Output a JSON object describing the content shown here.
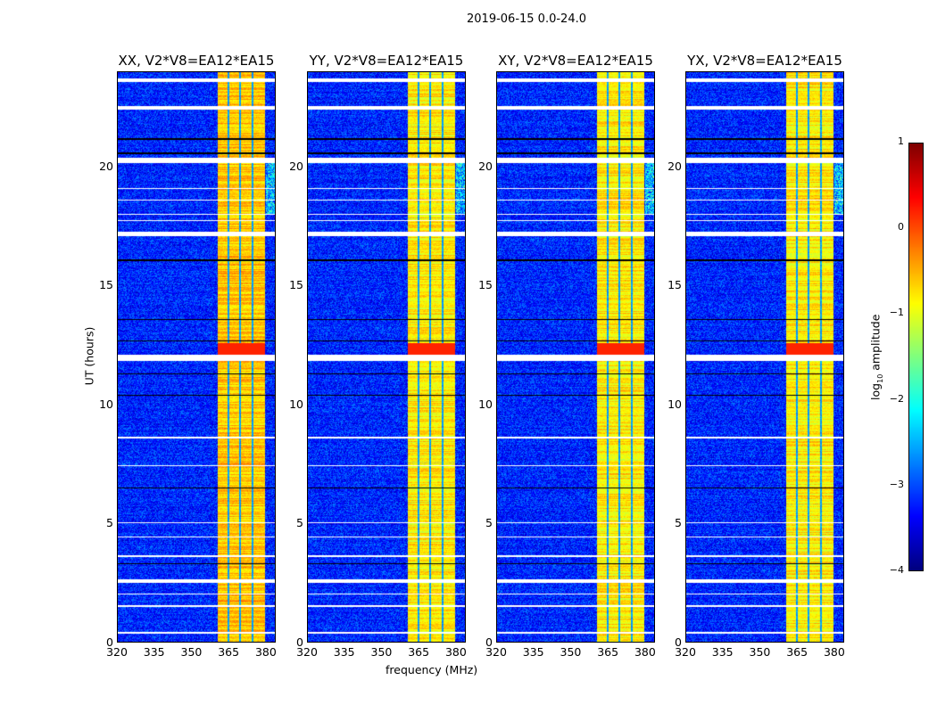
{
  "title": "2019-06-15 0.0-24.0",
  "chart_data": {
    "type": "heatmap",
    "panels": [
      {
        "title": "XX, V2*V8=EA12*EA15",
        "pol": "XX",
        "band_level": -0.6
      },
      {
        "title": "YY, V2*V8=EA12*EA15",
        "pol": "YY",
        "band_level": -0.8
      },
      {
        "title": "XY, V2*V8=EA12*EA15",
        "pol": "XY",
        "band_level": -0.8
      },
      {
        "title": "YX, V2*V8=EA12*EA15",
        "pol": "YX",
        "band_level": -0.8
      }
    ],
    "xlabel": "frequency (MHz)",
    "ylabel": "UT (hours)",
    "xlim": [
      320,
      384
    ],
    "ylim": [
      0,
      24
    ],
    "xticks": [
      "320",
      "335",
      "350",
      "365",
      "380"
    ],
    "xtick_values": [
      320,
      335,
      350,
      365,
      380
    ],
    "yticks": [
      "0",
      "5",
      "10",
      "15",
      "20"
    ],
    "ytick_values": [
      0,
      5,
      10,
      15,
      20
    ],
    "background_level": -3.2,
    "band_mhz": [
      360.5,
      379.8
    ],
    "band_gaps_mhz": [
      364.8,
      369.8,
      374.8
    ],
    "flagged_hours": [
      [
        23.6,
        23.75
      ],
      [
        22.45,
        22.6
      ],
      [
        20.2,
        20.4
      ],
      [
        19.1,
        19.15
      ],
      [
        18.6,
        18.65
      ],
      [
        18.0,
        18.05
      ],
      [
        17.75,
        17.8
      ],
      [
        17.1,
        17.3
      ],
      [
        11.85,
        12.1
      ],
      [
        8.6,
        8.65
      ],
      [
        7.4,
        7.45
      ],
      [
        5.0,
        5.05
      ],
      [
        4.4,
        4.45
      ],
      [
        3.6,
        3.65
      ],
      [
        2.5,
        2.65
      ],
      [
        2.0,
        2.05
      ],
      [
        1.5,
        1.55
      ],
      [
        0.35,
        0.42
      ]
    ],
    "dropout_hours": [
      21.2,
      20.6,
      16.1,
      13.6,
      12.7,
      11.3,
      10.4,
      6.5,
      3.3
    ],
    "colorbar": {
      "label": "log10 amplitude",
      "label_main": "log",
      "label_sub": "10",
      "label_rest": " amplitude",
      "range": [
        -4,
        1
      ],
      "ticks": [
        "1",
        "0",
        "−1",
        "−2",
        "−3",
        "−4"
      ],
      "tick_values": [
        1,
        0,
        -1,
        -2,
        -3,
        -4
      ],
      "colormap": "jet"
    }
  }
}
